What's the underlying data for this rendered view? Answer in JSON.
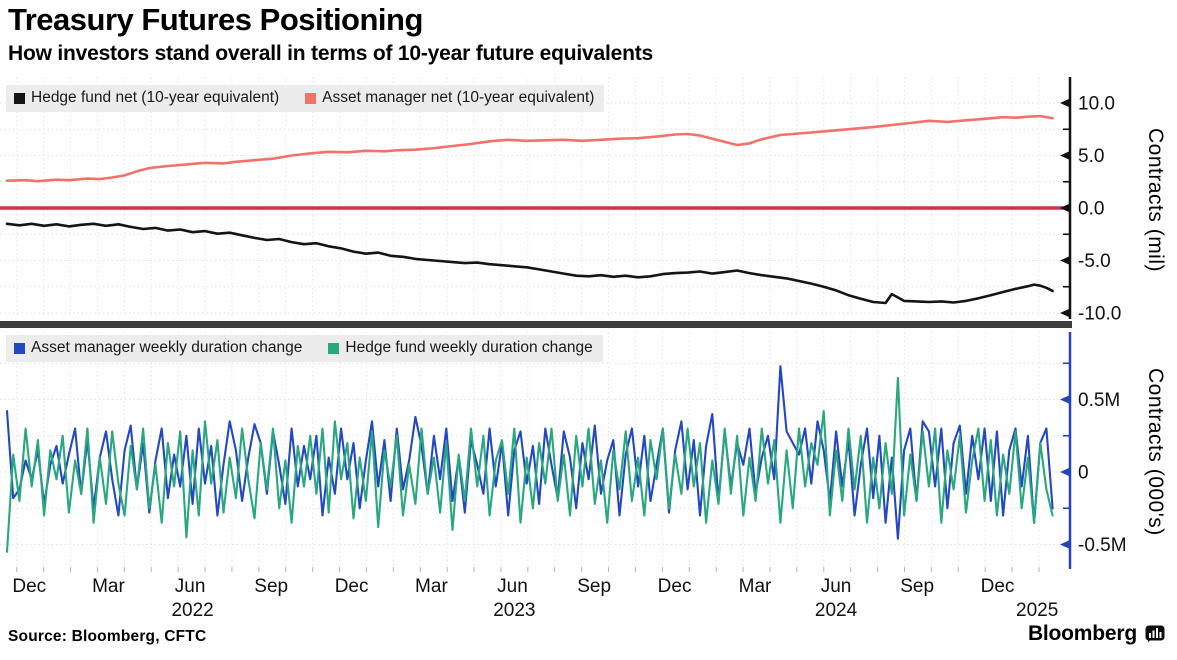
{
  "header": {
    "title": "Treasury Futures Positioning",
    "subtitle": "How investors stand overall in terms of 10-year future equivalents"
  },
  "footer": {
    "source": "Source: Bloomberg, CFTC",
    "brand": "Bloomberg"
  },
  "colors": {
    "hedge_fund_net": "#141414",
    "asset_manager_net": "#f2726a",
    "zero_line": "#d13049",
    "asset_manager_weekly": "#2447c4",
    "hedge_fund_weekly": "#29a87f",
    "axis_black": "#111111",
    "axis_blue": "#2443bd",
    "legend_bg": "#ececec",
    "separator": "#3d3d3d",
    "grid_h": "#e6dede",
    "grid_v": "#e6e6e6"
  },
  "x_axis": {
    "weeks_total": 171,
    "month_ticks": [
      {
        "label": "Dec",
        "week": 3.6
      },
      {
        "label": "Mar",
        "week": 16.4
      },
      {
        "label": "Jun",
        "week": 29.6
      },
      {
        "label": "Sep",
        "week": 42.7
      },
      {
        "label": "Dec",
        "week": 55.7
      },
      {
        "label": "Mar",
        "week": 68.6
      },
      {
        "label": "Jun",
        "week": 81.7
      },
      {
        "label": "Sep",
        "week": 94.9
      },
      {
        "label": "Dec",
        "week": 107.9
      },
      {
        "label": "Mar",
        "week": 120.9
      },
      {
        "label": "Jun",
        "week": 134.0
      },
      {
        "label": "Sep",
        "week": 147.1
      },
      {
        "label": "Dec",
        "week": 160.1
      }
    ],
    "year_ticks": [
      {
        "label": "2022",
        "week": 30
      },
      {
        "label": "2023",
        "week": 82
      },
      {
        "label": "2024",
        "week": 134
      },
      {
        "label": "2025",
        "week": 166.5
      }
    ]
  },
  "chart_data": [
    {
      "id": "net_positions",
      "type": "line",
      "ylabel": "Contracts (mil)",
      "ylim": [
        -10.9,
        12.7
      ],
      "grid": true,
      "legend_position": "top-left",
      "yticks": {
        "major": [
          10,
          5,
          0,
          -5,
          -10
        ],
        "labels": [
          "10.0",
          "5.0",
          "0.0",
          "-5.0",
          "-10.0"
        ],
        "minor": [
          7.5,
          2.5,
          -2.5,
          -7.5
        ]
      },
      "zero_line": true,
      "axis_color": "#111111",
      "legend": [
        {
          "label": "Hedge fund net (10-year equivalent)",
          "color": "#141414"
        },
        {
          "label": "Asset manager net (10-year equivalent)",
          "color": "#f2726a"
        }
      ],
      "series": [
        {
          "name": "Hedge fund net (10-year equivalent)",
          "color": "#141414",
          "x_weeks": [
            0,
            2,
            4,
            6,
            8,
            10,
            12,
            14,
            16,
            18,
            20,
            22,
            24,
            26,
            28,
            30,
            32,
            34,
            36,
            38,
            40,
            42,
            44,
            46,
            48,
            50,
            52,
            54,
            56,
            58,
            60,
            62,
            64,
            66,
            68,
            70,
            72,
            74,
            76,
            78,
            80,
            82,
            84,
            86,
            88,
            90,
            92,
            94,
            96,
            98,
            100,
            102,
            104,
            106,
            108,
            110,
            112,
            114,
            116,
            118,
            120,
            122,
            124,
            126,
            128,
            130,
            132,
            134,
            136,
            138,
            140,
            142,
            143,
            145,
            147,
            149,
            151,
            153,
            155,
            157,
            159,
            161,
            163,
            165,
            166,
            167,
            168,
            169
          ],
          "values": [
            -1.5,
            -1.65,
            -1.5,
            -1.7,
            -1.55,
            -1.75,
            -1.6,
            -1.5,
            -1.7,
            -1.55,
            -1.8,
            -2.0,
            -1.9,
            -2.15,
            -2.05,
            -2.3,
            -2.2,
            -2.45,
            -2.35,
            -2.6,
            -2.85,
            -3.05,
            -2.95,
            -3.25,
            -3.45,
            -3.35,
            -3.65,
            -3.85,
            -4.15,
            -4.35,
            -4.25,
            -4.55,
            -4.65,
            -4.85,
            -4.95,
            -5.05,
            -5.15,
            -5.25,
            -5.2,
            -5.35,
            -5.45,
            -5.55,
            -5.65,
            -5.85,
            -6.05,
            -6.25,
            -6.45,
            -6.5,
            -6.4,
            -6.55,
            -6.45,
            -6.6,
            -6.5,
            -6.3,
            -6.2,
            -6.15,
            -6.05,
            -6.25,
            -6.1,
            -5.95,
            -6.2,
            -6.4,
            -6.55,
            -6.7,
            -6.95,
            -7.2,
            -7.5,
            -7.85,
            -8.3,
            -8.65,
            -8.95,
            -9.05,
            -8.2,
            -8.85,
            -8.9,
            -8.95,
            -8.9,
            -9.0,
            -8.85,
            -8.6,
            -8.3,
            -8.0,
            -7.7,
            -7.45,
            -7.3,
            -7.4,
            -7.6,
            -7.9
          ]
        },
        {
          "name": "Asset manager net (10-year equivalent)",
          "color": "#f2726a",
          "x_weeks": [
            0,
            3,
            5,
            8,
            10,
            13,
            15,
            17,
            19,
            21,
            23,
            26,
            29,
            32,
            35,
            37,
            40,
            43,
            46,
            49,
            52,
            55,
            58,
            61,
            63,
            66,
            69,
            72,
            75,
            78,
            81,
            84,
            87,
            90,
            93,
            96,
            99,
            102,
            105,
            108,
            110,
            112,
            114,
            116,
            118,
            120,
            122,
            125,
            128,
            131,
            134,
            137,
            140,
            143,
            146,
            149,
            152,
            155,
            158,
            161,
            163,
            165,
            167,
            169
          ],
          "values": [
            2.6,
            2.65,
            2.55,
            2.7,
            2.65,
            2.8,
            2.75,
            2.9,
            3.1,
            3.5,
            3.8,
            4.0,
            4.15,
            4.3,
            4.25,
            4.4,
            4.55,
            4.7,
            5.0,
            5.2,
            5.35,
            5.3,
            5.45,
            5.4,
            5.5,
            5.55,
            5.7,
            5.9,
            6.1,
            6.35,
            6.5,
            6.4,
            6.45,
            6.5,
            6.4,
            6.5,
            6.6,
            6.65,
            6.8,
            7.0,
            7.05,
            6.9,
            6.6,
            6.3,
            6.0,
            6.15,
            6.55,
            6.95,
            7.1,
            7.25,
            7.4,
            7.55,
            7.7,
            7.9,
            8.1,
            8.3,
            8.2,
            8.35,
            8.5,
            8.65,
            8.6,
            8.7,
            8.75,
            8.55
          ]
        }
      ]
    },
    {
      "id": "weekly_duration_change",
      "type": "line",
      "ylabel": "Contracts  (000's)",
      "ylim": [
        -0.71,
        0.98
      ],
      "grid": true,
      "legend_position": "top-left",
      "yticks": {
        "major": [
          0.5,
          0,
          -0.5
        ],
        "labels": [
          "0.5M",
          "0",
          "-0.5M"
        ],
        "minor": [
          0.75,
          0.25,
          -0.25
        ]
      },
      "zero_line": false,
      "axis_color": "#2443bd",
      "legend": [
        {
          "label": "Asset manager weekly duration change",
          "color": "#2447c4"
        },
        {
          "label": "Hedge fund weekly duration change",
          "color": "#29a87f"
        }
      ],
      "series": [
        {
          "name": "Asset manager weekly duration change",
          "color": "#2447c4",
          "week_step": 1,
          "values": [
            0.42,
            -0.18,
            -0.12,
            0.08,
            -0.05,
            0.15,
            -0.22,
            0.05,
            0.18,
            -0.08,
            0.12,
            0.3,
            -0.15,
            0.22,
            -0.25,
            0.1,
            0.28,
            -0.05,
            -0.3,
            0.15,
            0.32,
            -0.12,
            0.2,
            -0.28,
            0.08,
            0.3,
            -0.18,
            0.12,
            -0.1,
            0.25,
            -0.22,
            0.3,
            -0.08,
            0.18,
            -0.3,
            0.05,
            0.35,
            0.15,
            -0.2,
            0.1,
            0.33,
            0.2,
            -0.15,
            0.28,
            0.05,
            -0.22,
            0.3,
            -0.1,
            0.18,
            -0.05,
            0.25,
            -0.3,
            0.1,
            -0.15,
            0.3,
            -0.05,
            0.2,
            -0.25,
            0.08,
            0.35,
            -0.1,
            0.22,
            -0.2,
            0.3,
            -0.12,
            0.08,
            0.38,
            0.18,
            -0.15,
            0.25,
            -0.05,
            0.3,
            -0.2,
            0.1,
            -0.28,
            0.22,
            0.05,
            -0.15,
            0.3,
            -0.1,
            0.2,
            -0.3,
            0.15,
            0.28,
            -0.08,
            0.18,
            -0.22,
            0.3,
            0.05,
            -0.18,
            0.28,
            0.1,
            -0.25,
            0.2,
            -0.05,
            0.32,
            -0.15,
            0.08,
            0.22,
            -0.3,
            0.12,
            0.3,
            -0.1,
            0.25,
            -0.2,
            0.05,
            0.3,
            -0.28,
            0.15,
            0.35,
            -0.12,
            0.22,
            -0.3,
            0.18,
            0.4,
            -0.2,
            0.28,
            -0.1,
            0.2,
            0.05,
            0.3,
            -0.15,
            0.1,
            0.25,
            -0.05,
            0.73,
            0.28,
            0.2,
            0.12,
            0.3,
            -0.08,
            0.35,
            0.15,
            -0.2,
            0.28,
            -0.1,
            0.22,
            -0.3,
            0.05,
            0.3,
            -0.18,
            0.25,
            -0.35,
            0.1,
            -0.46,
            0.15,
            0.3,
            -0.2,
            0.35,
            0.28,
            -0.1,
            0.3,
            -0.25,
            0.2,
            0.32,
            -0.15,
            0.25,
            -0.05,
            0.3,
            -0.2,
            0.28,
            -0.3,
            0.15,
            0.3,
            -0.1,
            0.25,
            -0.35,
            0.2,
            0.3,
            -0.25
          ]
        },
        {
          "name": "Hedge fund weekly duration change",
          "color": "#29a87f",
          "week_step": 1,
          "values": [
            -0.55,
            0.12,
            -0.2,
            0.3,
            -0.1,
            0.22,
            -0.3,
            0.15,
            -0.05,
            0.25,
            -0.28,
            0.08,
            -0.15,
            0.3,
            -0.35,
            0.1,
            -0.22,
            0.28,
            -0.08,
            -0.3,
            0.18,
            -0.12,
            0.3,
            -0.25,
            0.05,
            -0.35,
            0.2,
            -0.1,
            0.28,
            -0.45,
            0.15,
            -0.3,
            0.35,
            -0.08,
            0.22,
            -0.28,
            0.1,
            -0.18,
            0.3,
            -0.05,
            -0.32,
            0.2,
            -0.12,
            0.3,
            -0.25,
            0.08,
            -0.35,
            0.18,
            -0.1,
            0.25,
            -0.15,
            0.3,
            -0.28,
            0.35,
            -0.05,
            0.2,
            -0.32,
            0.1,
            -0.2,
            0.28,
            -0.38,
            0.15,
            -0.1,
            0.25,
            -0.3,
            0.05,
            -0.22,
            0.3,
            -0.15,
            0.1,
            -0.28,
            0.2,
            -0.4,
            0.12,
            -0.2,
            0.3,
            -0.1,
            0.25,
            -0.3,
            0.08,
            0.22,
            -0.15,
            0.3,
            -0.35,
            0.1,
            -0.25,
            0.2,
            -0.08,
            0.3,
            -0.2,
            0.12,
            -0.3,
            0.25,
            -0.1,
            0.3,
            -0.22,
            0.08,
            -0.35,
            0.15,
            -0.12,
            0.28,
            -0.2,
            0.1,
            -0.3,
            0.22,
            -0.05,
            0.3,
            -0.25,
            0.12,
            -0.15,
            0.3,
            -0.1,
            0.2,
            -0.35,
            0.08,
            -0.22,
            0.3,
            -0.15,
            0.25,
            -0.3,
            0.1,
            -0.2,
            0.3,
            -0.08,
            0.22,
            -0.35,
            0.15,
            -0.25,
            0.3,
            -0.1,
            0.2,
            0.05,
            0.42,
            -0.3,
            0.15,
            -0.2,
            0.3,
            -0.12,
            0.25,
            -0.35,
            0.1,
            -0.25,
            0.2,
            -0.15,
            0.65,
            -0.3,
            0.12,
            -0.2,
            0.28,
            -0.1,
            0.3,
            -0.35,
            0.15,
            -0.12,
            0.25,
            -0.28,
            0.08,
            0.3,
            -0.2,
            0.22,
            -0.3,
            0.12,
            -0.15,
            0.28,
            -0.25,
            0.1,
            -0.35,
            0.2,
            -0.12,
            -0.3
          ]
        }
      ]
    }
  ]
}
